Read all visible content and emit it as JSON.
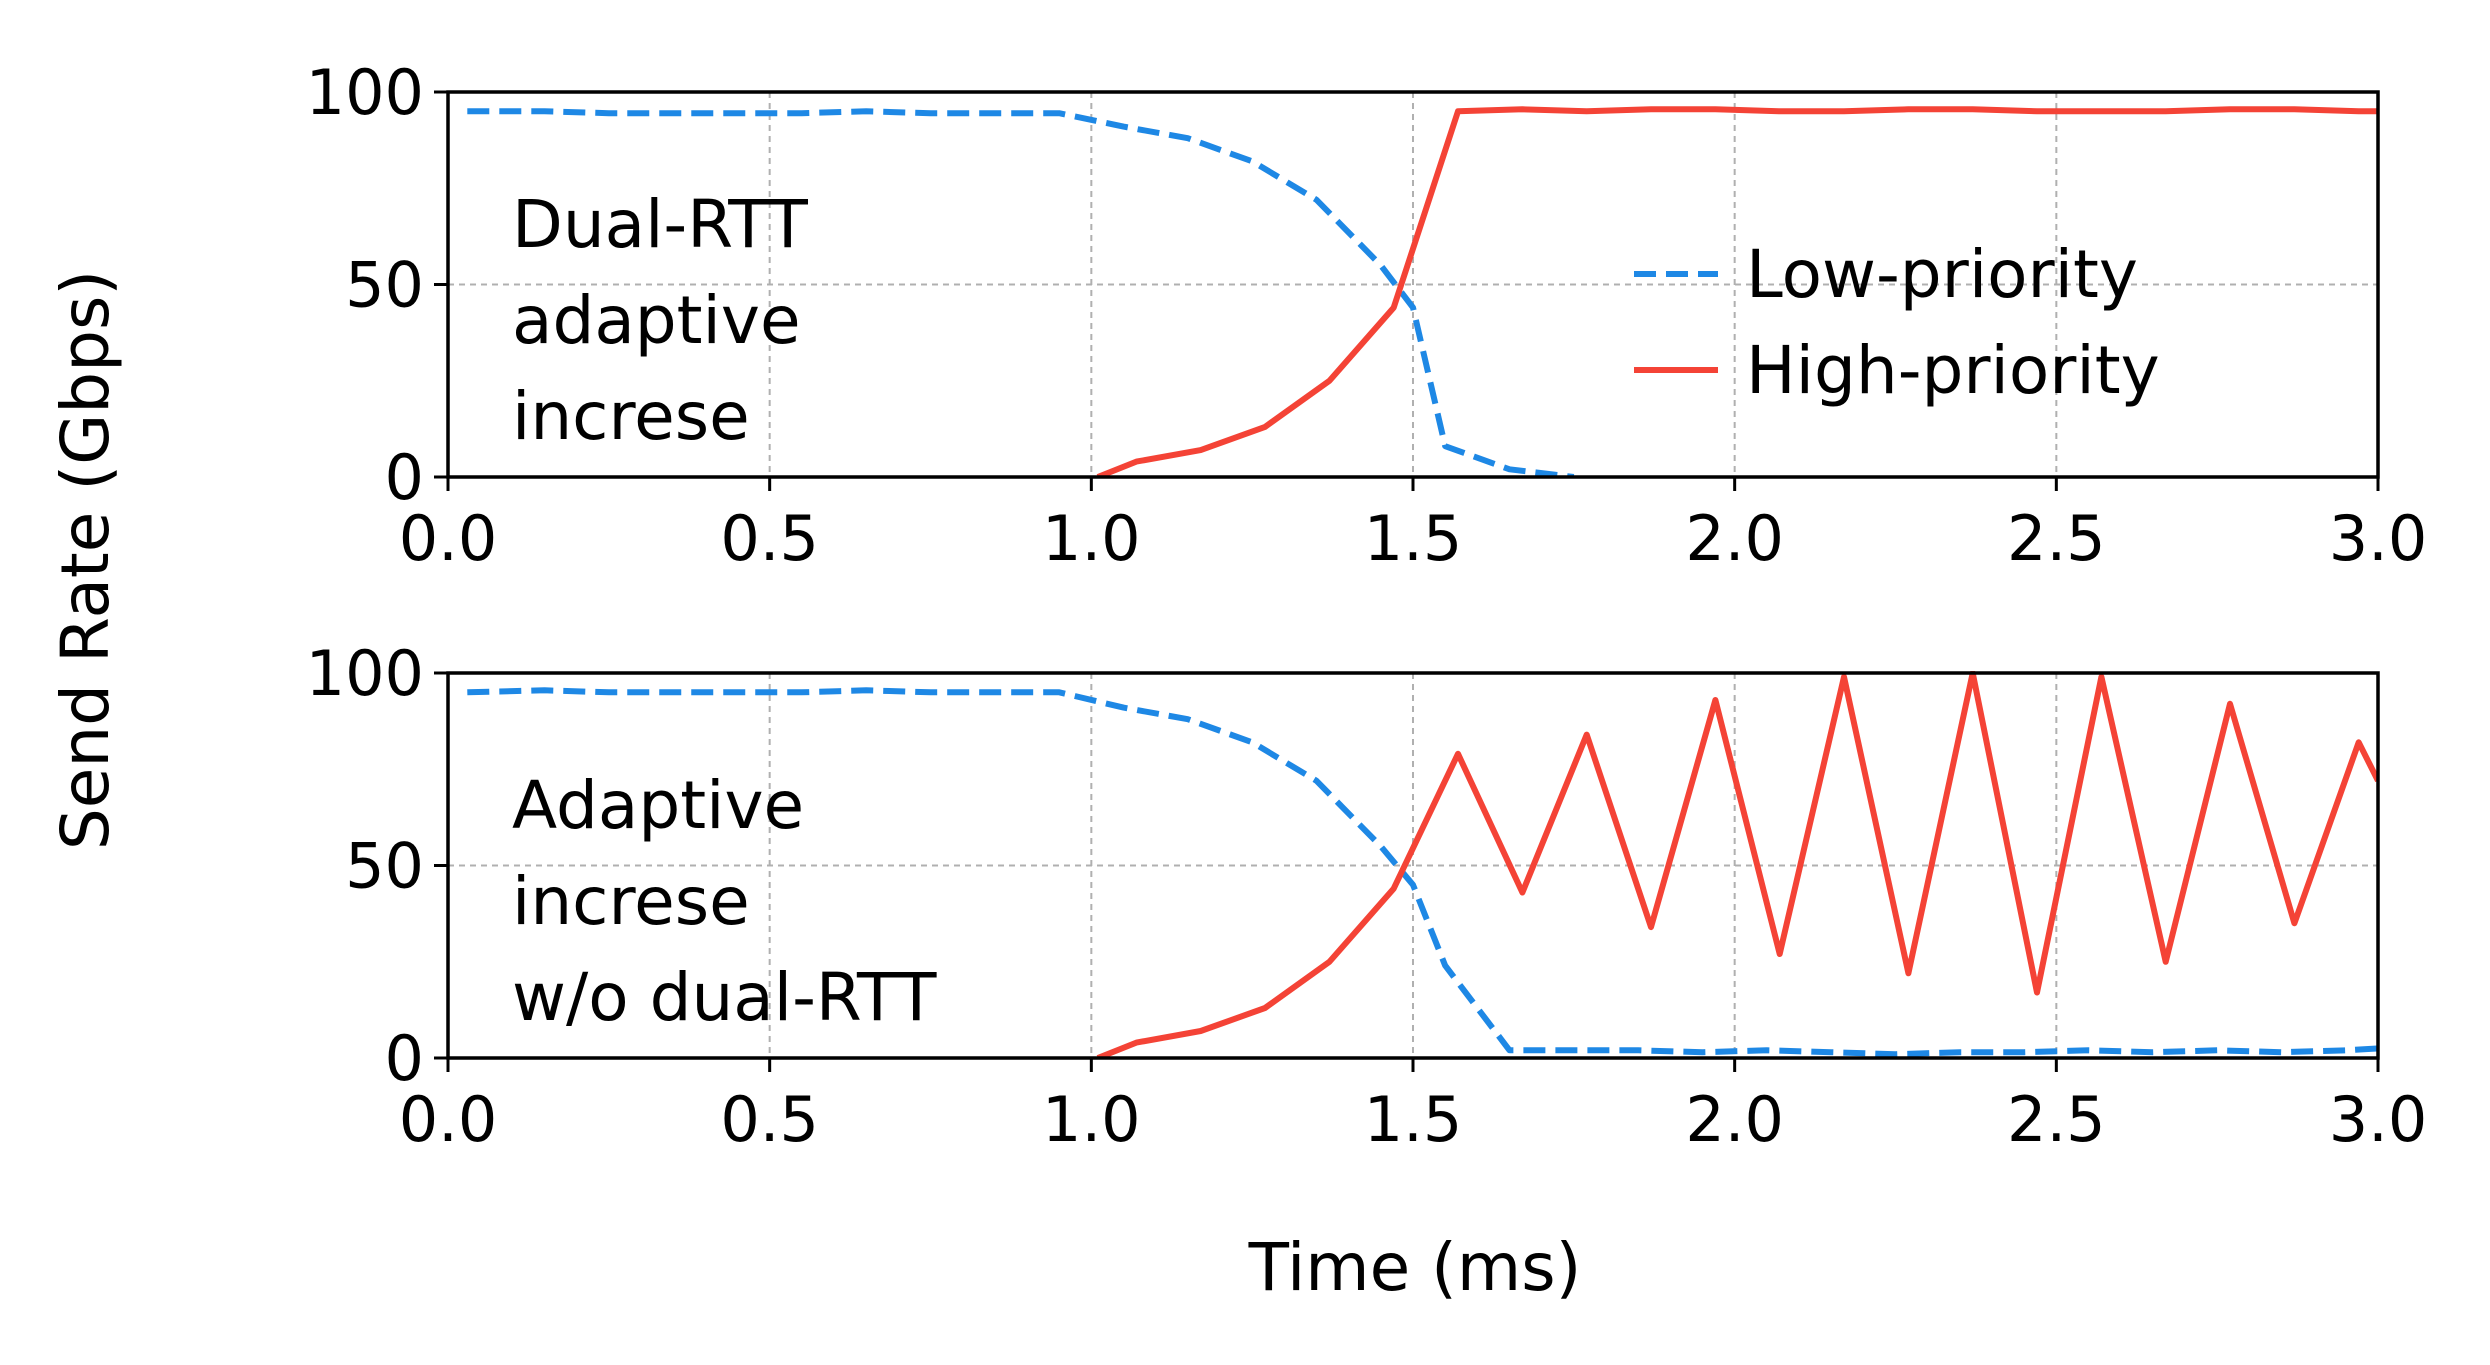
{
  "colors": {
    "low_priority": "#1e88e5",
    "high_priority": "#f44336",
    "grid": "#b0b0b0",
    "axis": "#000000"
  },
  "shared": {
    "ylabel": "Send Rate (Gbps)",
    "xlabel": "Time (ms)"
  },
  "chart_data": [
    {
      "type": "line",
      "annotation": [
        "Dual-RTT",
        "adaptive",
        "increse"
      ],
      "xlim": [
        0,
        3.0
      ],
      "ylim": [
        0,
        100
      ],
      "x_ticks": [
        "0.0",
        "0.5",
        "1.0",
        "1.5",
        "2.0",
        "2.5",
        "3.0"
      ],
      "y_ticks": [
        "0",
        "50",
        "100"
      ],
      "grid": true,
      "legend": {
        "placement": "center-right",
        "entries": [
          "Low-priority",
          "High-priority"
        ]
      },
      "series": [
        {
          "name": "Low-priority",
          "style": "dashed",
          "x": [
            0.03,
            0.15,
            0.25,
            0.35,
            0.45,
            0.55,
            0.65,
            0.75,
            0.85,
            0.95,
            1.05,
            1.15,
            1.25,
            1.35,
            1.45,
            1.5,
            1.55,
            1.65,
            1.75
          ],
          "y": [
            95,
            95,
            94.5,
            94.5,
            94.5,
            94.5,
            95,
            94.5,
            94.5,
            94.5,
            91,
            88,
            82,
            72,
            55,
            44,
            8,
            2,
            0
          ]
        },
        {
          "name": "High-priority",
          "style": "solid",
          "x": [
            1.01,
            1.07,
            1.17,
            1.27,
            1.37,
            1.47,
            1.57,
            1.67,
            1.77,
            1.87,
            1.97,
            2.07,
            2.17,
            2.27,
            2.37,
            2.47,
            2.57,
            2.67,
            2.77,
            2.87,
            2.97,
            3.0
          ],
          "y": [
            0,
            4,
            7,
            13,
            25,
            44,
            95,
            95.5,
            95,
            95.5,
            95.5,
            95,
            95,
            95.5,
            95.5,
            95,
            95,
            95,
            95.5,
            95.5,
            95,
            95
          ]
        }
      ]
    },
    {
      "type": "line",
      "annotation": [
        "Adaptive",
        "increse",
        "w/o dual-RTT"
      ],
      "xlim": [
        0,
        3.0
      ],
      "ylim": [
        0,
        100
      ],
      "x_ticks": [
        "0.0",
        "0.5",
        "1.0",
        "1.5",
        "2.0",
        "2.5",
        "3.0"
      ],
      "y_ticks": [
        "0",
        "50",
        "100"
      ],
      "grid": true,
      "series": [
        {
          "name": "Low-priority",
          "style": "dashed",
          "x": [
            0.03,
            0.15,
            0.25,
            0.35,
            0.45,
            0.55,
            0.65,
            0.75,
            0.85,
            0.95,
            1.05,
            1.15,
            1.25,
            1.35,
            1.45,
            1.5,
            1.55,
            1.65,
            1.75,
            1.85,
            1.95,
            2.05,
            2.15,
            2.25,
            2.35,
            2.45,
            2.55,
            2.65,
            2.75,
            2.85,
            2.95,
            3.0
          ],
          "y": [
            95,
            95.5,
            95,
            95,
            95,
            95,
            95.5,
            95,
            95,
            95,
            91,
            88,
            82,
            72,
            55,
            45,
            24,
            2,
            2,
            2,
            1.5,
            2,
            1.5,
            1,
            1.5,
            1.5,
            2,
            1.5,
            2,
            1.5,
            2,
            2.5
          ]
        },
        {
          "name": "High-priority",
          "style": "solid",
          "x": [
            1.01,
            1.07,
            1.17,
            1.27,
            1.37,
            1.47,
            1.57,
            1.67,
            1.77,
            1.87,
            1.97,
            2.07,
            2.17,
            2.27,
            2.37,
            2.47,
            2.57,
            2.67,
            2.77,
            2.87,
            2.97,
            3.0
          ],
          "y": [
            0,
            4,
            7,
            13,
            25,
            44,
            79,
            43,
            84,
            34,
            93,
            27,
            99,
            22,
            100,
            17,
            99,
            25,
            92,
            35,
            82,
            72
          ]
        }
      ]
    }
  ]
}
